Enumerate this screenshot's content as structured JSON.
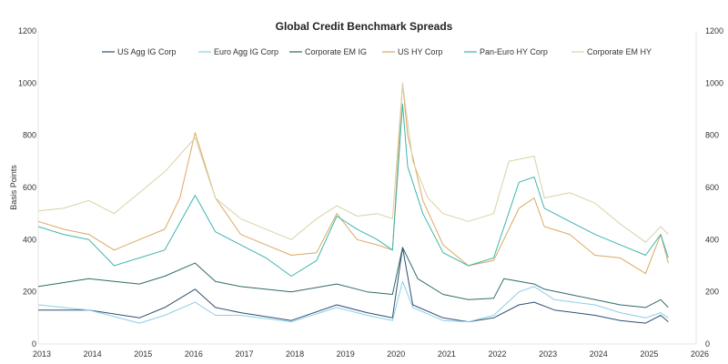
{
  "chart_data": {
    "type": "line",
    "title": "Global Credit Benchmark Spreads",
    "xlabel": "",
    "ylabel": "Basis Points",
    "xlim": [
      2013,
      2026
    ],
    "ylim": [
      0,
      1200
    ],
    "x_ticks": [
      "2013",
      "2014",
      "2015",
      "2016",
      "2017",
      "2018",
      "2019",
      "2020",
      "2021",
      "2022",
      "2023",
      "2024",
      "2025",
      "2026"
    ],
    "y_ticks": [
      "0",
      "200",
      "400",
      "600",
      "800",
      "1000",
      "1200"
    ],
    "secondary_y_ticks": [
      "0",
      "200",
      "400",
      "600",
      "800",
      "1000",
      "1200"
    ],
    "grid": false,
    "legend": "top",
    "series": [
      {
        "name": "US Agg IG Corp",
        "color": "#2f4f73",
        "x": [
          2013,
          2014,
          2015,
          2015.5,
          2016.1,
          2016.5,
          2017,
          2018,
          2018.9,
          2019.5,
          2020,
          2020.2,
          2020.4,
          2021,
          2021.5,
          2022,
          2022.5,
          2022.8,
          2023.2,
          2024,
          2024.5,
          2025,
          2025.3,
          2025.45
        ],
        "y": [
          130,
          130,
          100,
          140,
          210,
          140,
          120,
          90,
          150,
          120,
          100,
          370,
          150,
          100,
          85,
          100,
          150,
          160,
          130,
          110,
          90,
          80,
          110,
          85
        ]
      },
      {
        "name": "Euro Agg IG Corp",
        "color": "#8ccfe8",
        "x": [
          2013,
          2014,
          2015,
          2015.5,
          2016.1,
          2016.5,
          2017,
          2018,
          2018.9,
          2019.5,
          2020,
          2020.2,
          2020.4,
          2021,
          2021.5,
          2022,
          2022.5,
          2022.8,
          2023.2,
          2024,
          2024.5,
          2025,
          2025.3,
          2025.45
        ],
        "y": [
          150,
          130,
          80,
          110,
          160,
          110,
          110,
          85,
          140,
          110,
          90,
          240,
          140,
          90,
          85,
          110,
          200,
          220,
          170,
          150,
          120,
          100,
          120,
          100
        ]
      },
      {
        "name": "Corporate EM IG",
        "color": "#2f6b68",
        "x": [
          2013,
          2014,
          2015,
          2015.5,
          2016.1,
          2016.5,
          2017,
          2018,
          2018.9,
          2019.5,
          2020,
          2020.2,
          2020.5,
          2021,
          2021.5,
          2022,
          2022.2,
          2022.8,
          2023,
          2023.5,
          2024,
          2024.5,
          2025,
          2025.3,
          2025.45
        ],
        "y": [
          220,
          250,
          230,
          260,
          310,
          240,
          220,
          200,
          230,
          200,
          190,
          370,
          250,
          190,
          170,
          175,
          250,
          230,
          210,
          190,
          170,
          150,
          140,
          170,
          140
        ]
      },
      {
        "name": "US HY Corp",
        "color": "#dba862",
        "x": [
          2013,
          2013.5,
          2014,
          2014.5,
          2015,
          2015.5,
          2015.8,
          2016.1,
          2016.5,
          2017,
          2017.5,
          2018,
          2018.5,
          2018.9,
          2019.3,
          2019.7,
          2020,
          2020.2,
          2020.3,
          2020.6,
          2021,
          2021.5,
          2022,
          2022.5,
          2022.8,
          2023,
          2023.5,
          2024,
          2024.5,
          2025,
          2025.3,
          2025.45
        ],
        "y": [
          470,
          440,
          420,
          360,
          400,
          440,
          560,
          810,
          560,
          420,
          380,
          340,
          350,
          500,
          400,
          380,
          360,
          1000,
          800,
          550,
          380,
          300,
          320,
          520,
          560,
          450,
          420,
          340,
          330,
          270,
          420,
          310
        ]
      },
      {
        "name": "Pan-Euro HY Corp",
        "color": "#3db5ae",
        "x": [
          2013,
          2013.5,
          2014,
          2014.5,
          2015,
          2015.5,
          2016.1,
          2016.5,
          2017,
          2017.5,
          2018,
          2018.5,
          2018.9,
          2019.3,
          2019.7,
          2020,
          2020.2,
          2020.3,
          2020.6,
          2021,
          2021.5,
          2022,
          2022.5,
          2022.8,
          2023,
          2023.5,
          2024,
          2024.5,
          2025,
          2025.3,
          2025.45
        ],
        "y": [
          450,
          420,
          400,
          300,
          330,
          360,
          570,
          430,
          380,
          330,
          260,
          320,
          490,
          440,
          400,
          360,
          920,
          680,
          500,
          350,
          300,
          330,
          620,
          640,
          520,
          470,
          420,
          380,
          340,
          420,
          330
        ]
      },
      {
        "name": "Corporate EM HY",
        "color": "#d9d2a6",
        "x": [
          2013,
          2013.5,
          2014,
          2014.5,
          2015,
          2015.5,
          2016.1,
          2016.5,
          2017,
          2017.5,
          2018,
          2018.5,
          2018.9,
          2019.3,
          2019.7,
          2020,
          2020.2,
          2020.4,
          2020.7,
          2021,
          2021.5,
          2022,
          2022.3,
          2022.8,
          2023,
          2023.5,
          2024,
          2024.5,
          2025,
          2025.3,
          2025.45
        ],
        "y": [
          510,
          520,
          550,
          500,
          580,
          660,
          790,
          560,
          480,
          440,
          400,
          480,
          530,
          490,
          500,
          480,
          1000,
          700,
          560,
          500,
          470,
          500,
          700,
          720,
          560,
          580,
          540,
          460,
          390,
          450,
          420
        ]
      }
    ]
  }
}
